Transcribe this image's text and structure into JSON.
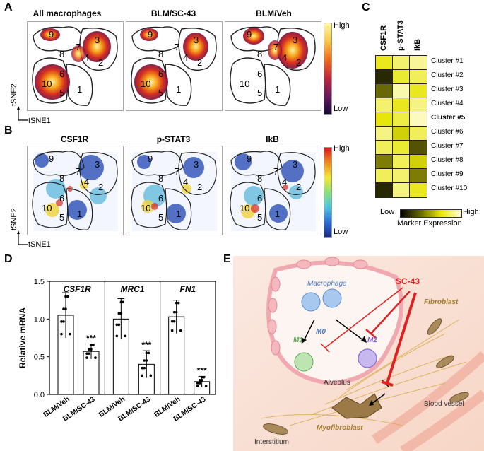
{
  "panels": {
    "A": "A",
    "B": "B",
    "C": "C",
    "D": "D",
    "E": "E"
  },
  "panelA": {
    "titles": [
      "All macrophages",
      "BLM/SC-43",
      "BLM/Veh"
    ],
    "colorbar_high": "High",
    "colorbar_low": "Low",
    "y_axis": "tSNE2",
    "x_axis": "tSNE1",
    "clusters": [
      "1",
      "2",
      "3",
      "4",
      "5",
      "6",
      "7",
      "8",
      "9",
      "10"
    ]
  },
  "panelB": {
    "titles": [
      "CSF1R",
      "p-STAT3",
      "IkB"
    ],
    "colorbar_high": "High",
    "colorbar_low": "Low",
    "y_axis": "tSNE2",
    "x_axis": "tSNE1"
  },
  "panelC": {
    "columns": [
      "CSF1R",
      "p-STAT3",
      "IkB"
    ],
    "rows": [
      "Cluster #1",
      "Cluster #2",
      "Cluster #3",
      "Cluster #4",
      "Cluster #5",
      "Cluster #6",
      "Cluster #7",
      "Cluster #8",
      "Cluster #9",
      "Cluster #10"
    ],
    "bold_row": "Cluster #5",
    "values": [
      [
        0.55,
        0.75,
        0.85
      ],
      [
        0.05,
        0.6,
        0.7
      ],
      [
        0.2,
        0.9,
        0.55
      ],
      [
        0.75,
        0.55,
        0.8
      ],
      [
        0.5,
        0.65,
        0.95
      ],
      [
        0.8,
        0.45,
        0.7
      ],
      [
        0.7,
        0.6,
        0.15
      ],
      [
        0.25,
        0.7,
        0.45
      ],
      [
        0.7,
        0.75,
        0.25
      ],
      [
        0.05,
        0.8,
        0.55
      ]
    ],
    "legend_low": "Low",
    "legend_high": "High",
    "legend_title": "Marker Expression"
  },
  "chart_data": {
    "type": "bar",
    "ylabel": "Relative mRNA",
    "ylim": [
      0,
      1.5
    ],
    "yticks": [
      "0.0",
      "0.5",
      "1.0",
      "1.5"
    ],
    "groups": [
      "CSF1R",
      "MRC1",
      "FN1"
    ],
    "categories": [
      "BLM/Veh",
      "BLM/SC-43"
    ],
    "series": [
      {
        "name": "CSF1R",
        "values": [
          1.05,
          0.57
        ],
        "errors": [
          0.3,
          0.1
        ],
        "significance": [
          "",
          "***"
        ]
      },
      {
        "name": "MRC1",
        "values": [
          1.0,
          0.4
        ],
        "errors": [
          0.27,
          0.18
        ],
        "significance": [
          "",
          "***"
        ]
      },
      {
        "name": "FN1",
        "values": [
          1.03,
          0.17
        ],
        "errors": [
          0.22,
          0.07
        ],
        "significance": [
          "",
          "***"
        ]
      }
    ]
  },
  "panelE": {
    "labels": {
      "macrophage": "Macrophage",
      "m0": "M0",
      "m1": "M1",
      "m2": "M2",
      "sc43": "SC-43",
      "fibroblast": "Fibroblast",
      "alveolus": "Alveolus",
      "myofibroblast": "Myofibroblast",
      "blood_vessel": "Blood vessel",
      "interstitium": "Interstitium"
    }
  }
}
